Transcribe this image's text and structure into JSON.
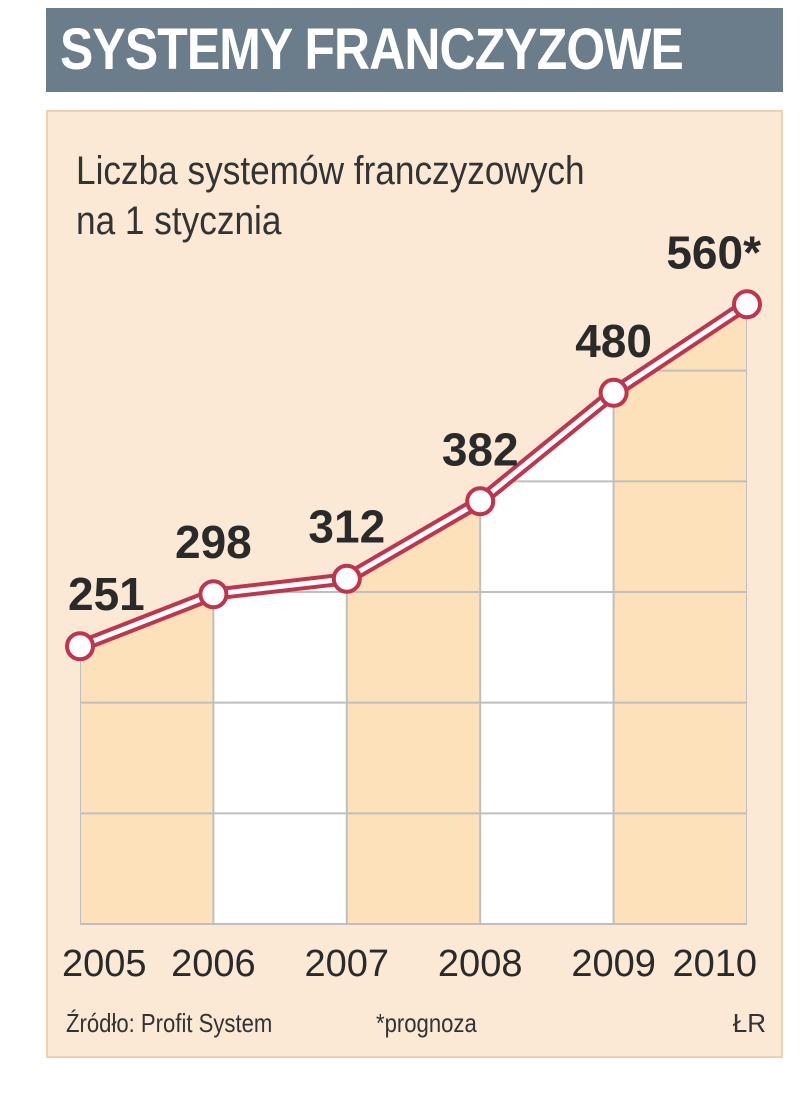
{
  "header": {
    "title": "SYSTEMY FRANCZYZOWE"
  },
  "chart_data": {
    "type": "line",
    "title": "SYSTEMY FRANCZYZOWE",
    "subtitle_lines": [
      "Liczba systemów franczyzowych",
      "na 1 stycznia"
    ],
    "categories": [
      "2005",
      "2006",
      "2007",
      "2008",
      "2009",
      "2010"
    ],
    "series": [
      {
        "values": [
          251,
          298,
          312,
          382,
          480,
          560
        ]
      }
    ],
    "data_labels": [
      "251",
      "298",
      "312",
      "382",
      "480",
      "560*"
    ],
    "ylim": [
      0,
      640
    ],
    "grid": true,
    "colors": {
      "line": "#c0344c",
      "marker_fill": "#ffffff",
      "column_fill": "#fce1bb",
      "alt_fill": "#ffffff",
      "grid": "#bfbfbf"
    }
  },
  "footer": {
    "source": "Źródło: Profit System",
    "note": "*prognoza",
    "credit": "ŁR"
  }
}
